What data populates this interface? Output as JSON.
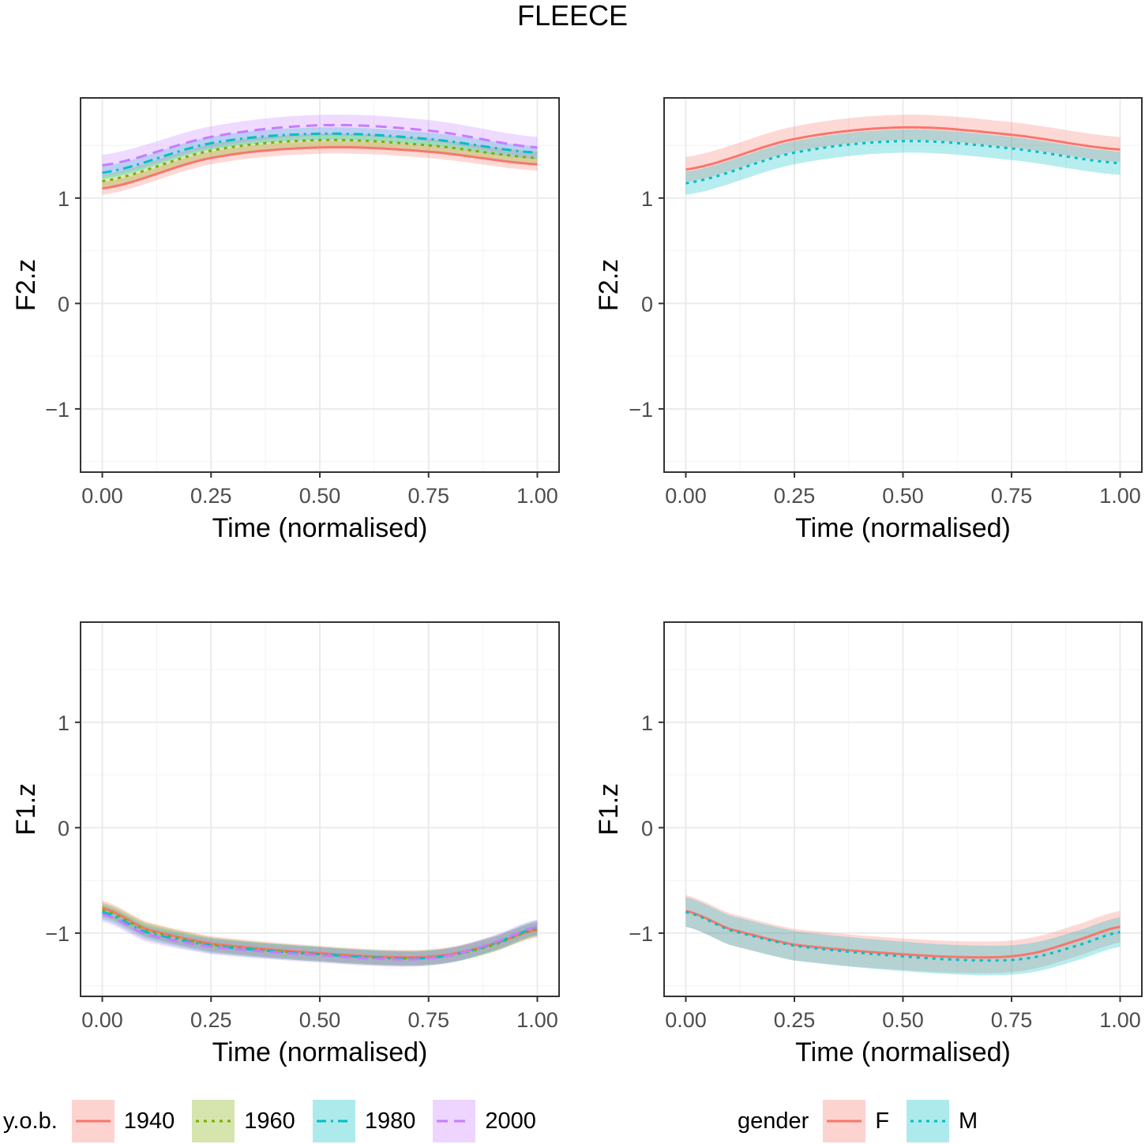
{
  "title": "FLEECE",
  "chart_data": [
    {
      "id": "f2-yob",
      "type": "line",
      "xlabel": "Time (normalised)",
      "ylabel": "F2.z",
      "xlim": [
        -0.05,
        1.05
      ],
      "ylim": [
        -1.6,
        1.95
      ],
      "xticks": [
        0,
        0.25,
        0.5,
        0.75,
        1
      ],
      "xtick_labels": [
        "0.00",
        "0.25",
        "0.50",
        "0.75",
        "1.00"
      ],
      "yticks": [
        -1,
        0,
        1
      ],
      "ytick_labels": [
        "−1",
        "0",
        "1"
      ],
      "x": [
        0,
        0.25,
        0.5,
        0.75,
        1
      ],
      "series": [
        {
          "name": "1940",
          "color": "#F8766D",
          "dash": "solid",
          "values": [
            1.09,
            1.38,
            1.48,
            1.44,
            1.32
          ],
          "band": 0.06
        },
        {
          "name": "1960",
          "color": "#7CAE00",
          "dash": "dotted",
          "values": [
            1.16,
            1.45,
            1.55,
            1.5,
            1.38
          ],
          "band": 0.06
        },
        {
          "name": "1980",
          "color": "#00BFC4",
          "dash": "dashdot",
          "values": [
            1.24,
            1.52,
            1.61,
            1.56,
            1.43
          ],
          "band": 0.06
        },
        {
          "name": "2000",
          "color": "#C77CFF",
          "dash": "dashed",
          "values": [
            1.31,
            1.58,
            1.69,
            1.64,
            1.48
          ],
          "band": 0.1
        }
      ]
    },
    {
      "id": "f2-gender",
      "type": "line",
      "xlabel": "Time (normalised)",
      "ylabel": "F2.z",
      "xlim": [
        -0.05,
        1.05
      ],
      "ylim": [
        -1.6,
        1.95
      ],
      "xticks": [
        0,
        0.25,
        0.5,
        0.75,
        1
      ],
      "xtick_labels": [
        "0.00",
        "0.25",
        "0.50",
        "0.75",
        "1.00"
      ],
      "yticks": [
        -1,
        0,
        1
      ],
      "ytick_labels": [
        "−1",
        "0",
        "1"
      ],
      "x": [
        0,
        0.25,
        0.5,
        0.75,
        1
      ],
      "series": [
        {
          "name": "F",
          "color": "#F8766D",
          "dash": "solid",
          "values": [
            1.27,
            1.56,
            1.67,
            1.6,
            1.46
          ],
          "band": 0.12
        },
        {
          "name": "M",
          "color": "#00BFC4",
          "dash": "dotted",
          "values": [
            1.14,
            1.43,
            1.54,
            1.47,
            1.33
          ],
          "band": 0.11
        }
      ]
    },
    {
      "id": "f1-yob",
      "type": "line",
      "xlabel": "Time (normalised)",
      "ylabel": "F1.z",
      "xlim": [
        -0.05,
        1.05
      ],
      "ylim": [
        -1.6,
        1.95
      ],
      "xticks": [
        0,
        0.25,
        0.5,
        0.75,
        1
      ],
      "xtick_labels": [
        "0.00",
        "0.25",
        "0.50",
        "0.75",
        "1.00"
      ],
      "yticks": [
        -1,
        0,
        1
      ],
      "ytick_labels": [
        "−1",
        "0",
        "1"
      ],
      "x": [
        0,
        0.1,
        0.25,
        0.5,
        0.7,
        0.8,
        0.9,
        1
      ],
      "series": [
        {
          "name": "1940",
          "color": "#F8766D",
          "dash": "solid",
          "values": [
            -0.76,
            -0.96,
            -1.1,
            -1.19,
            -1.23,
            -1.2,
            -1.1,
            -0.97
          ],
          "band": 0.07
        },
        {
          "name": "1960",
          "color": "#7CAE00",
          "dash": "dotted",
          "values": [
            -0.78,
            -0.97,
            -1.11,
            -1.2,
            -1.24,
            -1.21,
            -1.11,
            -0.96
          ],
          "band": 0.07
        },
        {
          "name": "1980",
          "color": "#00BFC4",
          "dash": "dashdot",
          "values": [
            -0.8,
            -0.99,
            -1.12,
            -1.2,
            -1.24,
            -1.21,
            -1.1,
            -0.95
          ],
          "band": 0.07
        },
        {
          "name": "2000",
          "color": "#C77CFF",
          "dash": "dashed",
          "values": [
            -0.82,
            -1.01,
            -1.13,
            -1.21,
            -1.25,
            -1.21,
            -1.09,
            -0.94
          ],
          "band": 0.07
        }
      ]
    },
    {
      "id": "f1-gender",
      "type": "line",
      "xlabel": "Time (normalised)",
      "ylabel": "F1.z",
      "xlim": [
        -0.05,
        1.05
      ],
      "ylim": [
        -1.6,
        1.95
      ],
      "xticks": [
        0,
        0.25,
        0.5,
        0.75,
        1
      ],
      "xtick_labels": [
        "0.00",
        "0.25",
        "0.50",
        "0.75",
        "1.00"
      ],
      "yticks": [
        -1,
        0,
        1
      ],
      "ytick_labels": [
        "−1",
        "0",
        "1"
      ],
      "x": [
        0,
        0.1,
        0.25,
        0.5,
        0.7,
        0.8,
        0.9,
        1
      ],
      "series": [
        {
          "name": "F",
          "color": "#F8766D",
          "dash": "solid",
          "values": [
            -0.79,
            -0.96,
            -1.11,
            -1.2,
            -1.23,
            -1.19,
            -1.07,
            -0.94
          ],
          "band": 0.15
        },
        {
          "name": "M",
          "color": "#00BFC4",
          "dash": "dotted",
          "values": [
            -0.8,
            -0.97,
            -1.12,
            -1.22,
            -1.26,
            -1.23,
            -1.12,
            -0.99
          ],
          "band": 0.14
        }
      ]
    }
  ],
  "legends": {
    "yob": {
      "title": "y.o.b.",
      "items": [
        {
          "label": "1940",
          "color": "#F8766D",
          "dash": "solid"
        },
        {
          "label": "1960",
          "color": "#7CAE00",
          "dash": "dotted"
        },
        {
          "label": "1980",
          "color": "#00BFC4",
          "dash": "dashdot"
        },
        {
          "label": "2000",
          "color": "#C77CFF",
          "dash": "dashed"
        }
      ]
    },
    "gender": {
      "title": "gender",
      "items": [
        {
          "label": "F",
          "color": "#F8766D",
          "dash": "solid"
        },
        {
          "label": "M",
          "color": "#00BFC4",
          "dash": "dotted"
        }
      ]
    }
  }
}
